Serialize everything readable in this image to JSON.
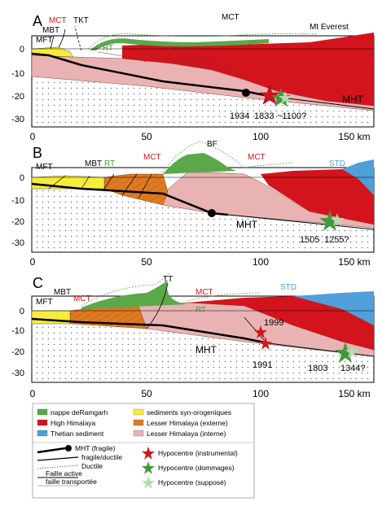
{
  "axis": {
    "depth_ticks": [
      "0",
      "-10",
      "-20",
      "-30"
    ],
    "distance_ticks": [
      "0",
      "50",
      "100",
      "150 km"
    ]
  },
  "panels": [
    {
      "letter": "A",
      "labels": {
        "mct_red": "MCT",
        "mct_top": "MCT",
        "tkt": "TKT",
        "mbt": "MBT",
        "mft": "MFT",
        "rt": "RT",
        "everest": "Mt Everest",
        "mht": "MHT",
        "eq_1934": "1934",
        "eq_1833": "1833",
        "eq_1100": "~1100?"
      }
    },
    {
      "letter": "B",
      "labels": {
        "mft": "MFT",
        "mbt": "MBT",
        "rt": "RT",
        "mct1": "MCT",
        "bf": "BF",
        "mct2": "MCT",
        "std": "STD",
        "mht": "MHT",
        "eq_1505": "1505",
        "eq_1255": "1255?"
      }
    },
    {
      "letter": "C",
      "labels": {
        "mbt": "MBT",
        "mct1": "MCT",
        "mft": "MFT",
        "tt": "TT",
        "mct2": "MCT",
        "rt": "RT",
        "std": "STD",
        "eq_1999": "1999",
        "mht": "MHT",
        "eq_1991": "1991",
        "eq_1803": "1803",
        "eq_1344": "1344?"
      }
    }
  ],
  "legend": {
    "units": [
      {
        "label": "nappe deRamgarh",
        "color": "#5aa84a"
      },
      {
        "label": "High Himalaya",
        "color": "#d3141c"
      },
      {
        "label": "Thetian sediment",
        "color": "#4f9fd8"
      },
      {
        "label": "sediments syn-orogeniques",
        "color": "#f7ec3a"
      },
      {
        "label": "Lesser Himalaya (externe)",
        "color": "#e07a22"
      },
      {
        "label": "Lesser Himalaya (interne)",
        "color": "#eab3b3"
      }
    ],
    "lines": {
      "mht": "MHT (fragile)",
      "fragile_ductile": "fragile/ductile",
      "ductile": "Ductile",
      "active": "Faille active",
      "transported": "faille transportée"
    },
    "hypocentres": [
      {
        "label": "Hypocentre (instrumental)",
        "color": "#d3141c"
      },
      {
        "label": "Hypocentre (dommages)",
        "color": "#3f9a3a"
      },
      {
        "label": "Hypocentre  (supposé)",
        "color": "#b8dcb0"
      }
    ]
  }
}
